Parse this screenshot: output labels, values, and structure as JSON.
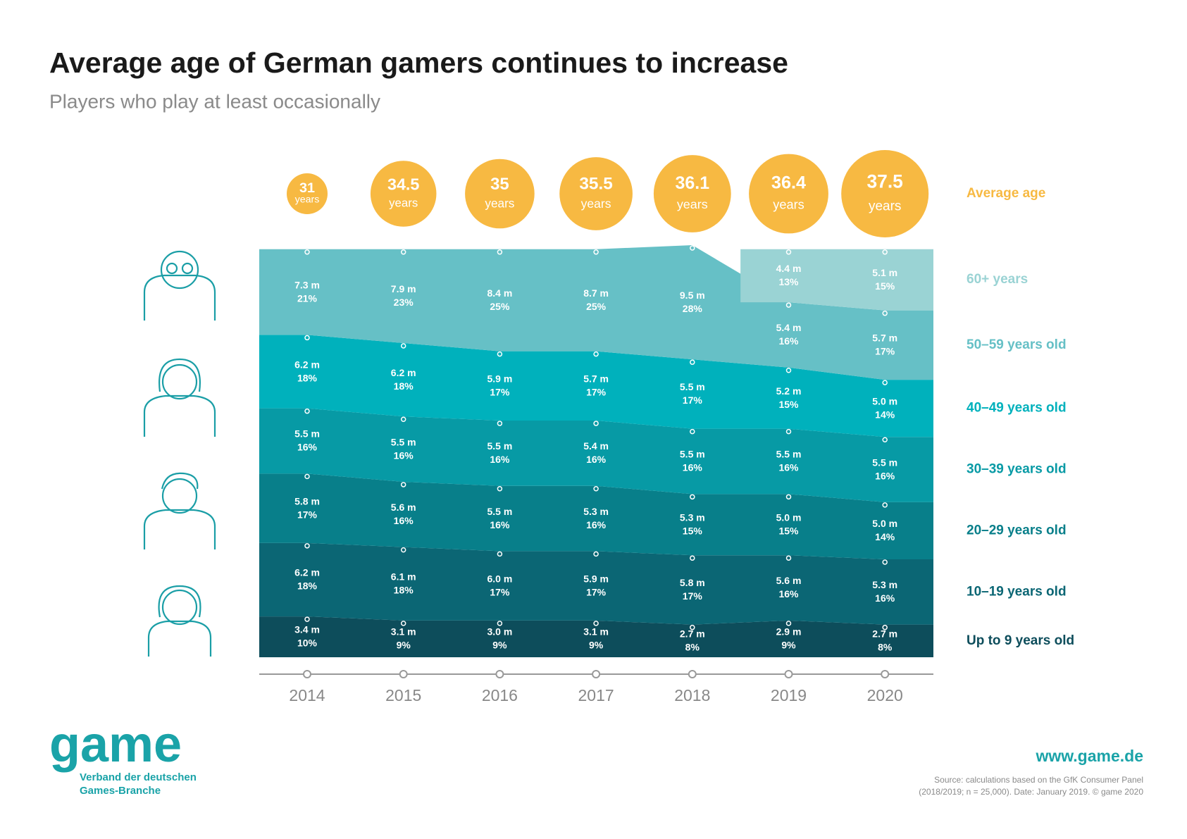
{
  "chart_data": {
    "type": "stacked-area",
    "title": "Average age of German gamers continues to increase",
    "subtitle": "Players who play at least occasionally",
    "categories": [
      "2014",
      "2015",
      "2016",
      "2017",
      "2018",
      "2019",
      "2020"
    ],
    "average_age": {
      "name": "Average age",
      "unit": "years",
      "color": "#f7b942",
      "values": [
        31,
        34.5,
        35,
        35.5,
        36.1,
        36.4,
        37.5
      ]
    },
    "series": [
      {
        "name": "Up to 9 years old",
        "color": "#0d4d5b",
        "values": [
          10,
          9,
          9,
          9,
          8,
          9,
          8
        ],
        "value_labels": [
          "10%",
          "9%",
          "9%",
          "9%",
          "8%",
          "9%",
          "8%"
        ],
        "millions": [
          3.4,
          3.1,
          3.0,
          3.1,
          2.7,
          2.9,
          2.7
        ],
        "millions_labels": [
          "3.4 m",
          "3.1 m",
          "3.0 m",
          "3.1 m",
          "2.7 m",
          "2.9 m",
          "2.7 m"
        ]
      },
      {
        "name": "10–19 years old",
        "color": "#0b6674",
        "values": [
          18,
          18,
          17,
          17,
          17,
          16,
          16
        ],
        "value_labels": [
          "18%",
          "18%",
          "17%",
          "17%",
          "17%",
          "16%",
          "16%"
        ],
        "millions": [
          6.2,
          6.1,
          6.0,
          5.9,
          5.8,
          5.6,
          5.3
        ],
        "millions_labels": [
          "6.2 m",
          "6.1 m",
          "6.0 m",
          "5.9 m",
          "5.8 m",
          "5.6 m",
          "5.3 m"
        ]
      },
      {
        "name": "20–29 years old",
        "color": "#087f8a",
        "values": [
          17,
          16,
          16,
          16,
          15,
          15,
          14
        ],
        "value_labels": [
          "17%",
          "16%",
          "16%",
          "16%",
          "15%",
          "15%",
          "14%"
        ],
        "millions": [
          5.8,
          5.6,
          5.5,
          5.3,
          5.3,
          5.0,
          5.0
        ],
        "millions_labels": [
          "5.8 m",
          "5.6 m",
          "5.5 m",
          "5.3 m",
          "5.3 m",
          "5.0 m",
          "5.0 m"
        ]
      },
      {
        "name": "30–39 years old",
        "color": "#079aa5",
        "values": [
          16,
          16,
          16,
          16,
          16,
          16,
          16
        ],
        "value_labels": [
          "16%",
          "16%",
          "16%",
          "16%",
          "16%",
          "16%",
          "16%"
        ],
        "millions": [
          5.5,
          5.5,
          5.5,
          5.4,
          5.5,
          5.5,
          5.5
        ],
        "millions_labels": [
          "5.5 m",
          "5.5 m",
          "5.5 m",
          "5.4 m",
          "5.5 m",
          "5.5 m",
          "5.5 m"
        ]
      },
      {
        "name": "40–49 years old",
        "color": "#00b1bc",
        "values": [
          18,
          18,
          17,
          17,
          17,
          15,
          14
        ],
        "value_labels": [
          "18%",
          "18%",
          "17%",
          "17%",
          "17%",
          "15%",
          "14%"
        ],
        "millions": [
          6.2,
          6.2,
          5.9,
          5.7,
          5.5,
          5.2,
          5.0
        ],
        "millions_labels": [
          "6.2 m",
          "6.2 m",
          "5.9 m",
          "5.7 m",
          "5.5 m",
          "5.2 m",
          "5.0 m"
        ]
      },
      {
        "name": "50–59 years old",
        "color": "#66c0c6",
        "values": [
          21,
          23,
          25,
          25,
          28,
          16,
          17
        ],
        "value_labels": [
          "21%",
          "23%",
          "25%",
          "25%",
          "28%",
          "16%",
          "17%"
        ],
        "millions": [
          7.3,
          7.9,
          8.4,
          8.7,
          9.5,
          5.4,
          5.7
        ],
        "millions_labels": [
          "7.3 m",
          "7.9 m",
          "8.4 m",
          "8.7 m",
          "9.5 m",
          "5.4 m",
          "5.7 m"
        ]
      },
      {
        "name": "60+ years",
        "color": "#9ad3d4",
        "values": [
          null,
          null,
          null,
          null,
          null,
          13,
          15
        ],
        "value_labels": [
          null,
          null,
          null,
          null,
          null,
          "13%",
          "15%"
        ],
        "millions": [
          null,
          null,
          null,
          null,
          null,
          4.4,
          5.1
        ],
        "millions_labels": [
          null,
          null,
          null,
          null,
          null,
          "4.4 m",
          "5.1 m"
        ]
      }
    ]
  },
  "footer": {
    "logo": "game",
    "org_line1": "Verband der deutschen",
    "org_line2": "Games-Branche",
    "url": "www.game.de",
    "source_line1": "Source: calculations based on the GfK Consumer Panel",
    "source_line2": "(2018/2019; n = 25,000). Date: January 2019. © game 2020"
  }
}
